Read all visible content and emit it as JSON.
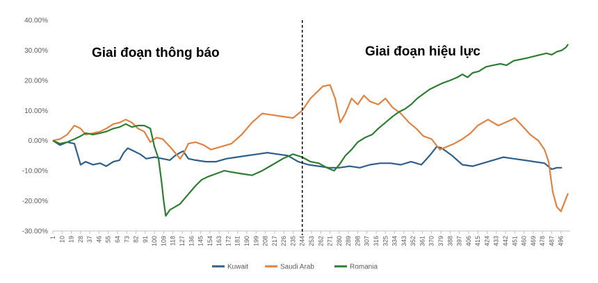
{
  "chart_data": {
    "type": "line",
    "title": "",
    "xlabel": "",
    "ylabel": "",
    "ylim": [
      -30,
      40
    ],
    "y_ticks": [
      "40.00%",
      "30.00%",
      "20.00%",
      "10.00%",
      "0.00%",
      "-10.00%",
      "-20.00%",
      "-30.00%"
    ],
    "y_tick_values": [
      40,
      30,
      20,
      10,
      0,
      -10,
      -20,
      -30
    ],
    "xlim": [
      1,
      505
    ],
    "x_tick_labels": [
      "1",
      "10",
      "19",
      "28",
      "37",
      "46",
      "55",
      "64",
      "73",
      "82",
      "91",
      "100",
      "109",
      "118",
      "127",
      "136",
      "145",
      "154",
      "163",
      "172",
      "181",
      "190",
      "199",
      "208",
      "217",
      "226",
      "235",
      "244",
      "253",
      "262",
      "271",
      "280",
      "289",
      "298",
      "307",
      "316",
      "325",
      "334",
      "343",
      "352",
      "361",
      "370",
      "379",
      "388",
      "397",
      "406",
      "415",
      "424",
      "433",
      "442",
      "451",
      "460",
      "469",
      "478",
      "487",
      "496"
    ],
    "divider_x": 244,
    "divider_style": "dashed",
    "annotations": [
      {
        "text": "Giai đoạn thông báo",
        "x": 120,
        "y": 29
      },
      {
        "text": "Giai đoạn hiệu lực",
        "x": 360,
        "y": 29
      }
    ],
    "grid": false,
    "legend_position": "bottom",
    "series": [
      {
        "name": "Kuwait",
        "color": "#2E5F8A",
        "points": [
          [
            1,
            0
          ],
          [
            8,
            -1.5
          ],
          [
            15,
            -0.5
          ],
          [
            22,
            -1
          ],
          [
            28,
            -8
          ],
          [
            33,
            -7
          ],
          [
            40,
            -8
          ],
          [
            47,
            -7.5
          ],
          [
            53,
            -8.5
          ],
          [
            60,
            -7
          ],
          [
            66,
            -6.5
          ],
          [
            70,
            -4
          ],
          [
            74,
            -2.5
          ],
          [
            80,
            -3.5
          ],
          [
            86,
            -4.5
          ],
          [
            92,
            -6
          ],
          [
            100,
            -5.5
          ],
          [
            108,
            -6
          ],
          [
            115,
            -6.5
          ],
          [
            120,
            -5
          ],
          [
            125,
            -4
          ],
          [
            128,
            -3.5
          ],
          [
            133,
            -6
          ],
          [
            140,
            -6.5
          ],
          [
            150,
            -7
          ],
          [
            160,
            -7
          ],
          [
            170,
            -6
          ],
          [
            180,
            -5.5
          ],
          [
            190,
            -5
          ],
          [
            200,
            -4.5
          ],
          [
            210,
            -4
          ],
          [
            220,
            -4.5
          ],
          [
            230,
            -5
          ],
          [
            240,
            -7
          ],
          [
            250,
            -8
          ],
          [
            260,
            -8.5
          ],
          [
            270,
            -9
          ],
          [
            280,
            -9
          ],
          [
            290,
            -8.5
          ],
          [
            300,
            -9
          ],
          [
            310,
            -8
          ],
          [
            320,
            -7.5
          ],
          [
            330,
            -7.5
          ],
          [
            340,
            -8
          ],
          [
            350,
            -7
          ],
          [
            360,
            -8
          ],
          [
            368,
            -5
          ],
          [
            375,
            -2
          ],
          [
            380,
            -2.5
          ],
          [
            390,
            -5
          ],
          [
            400,
            -8
          ],
          [
            410,
            -8.5
          ],
          [
            420,
            -7.5
          ],
          [
            430,
            -6.5
          ],
          [
            440,
            -5.5
          ],
          [
            450,
            -6
          ],
          [
            460,
            -6.5
          ],
          [
            470,
            -7
          ],
          [
            480,
            -7.5
          ],
          [
            487,
            -9.5
          ],
          [
            492,
            -9
          ],
          [
            497,
            -9
          ]
        ]
      },
      {
        "name": "Saudi Arab",
        "color": "#E2823F",
        "points": [
          [
            1,
            0
          ],
          [
            8,
            0.5
          ],
          [
            15,
            2
          ],
          [
            22,
            5
          ],
          [
            28,
            4
          ],
          [
            33,
            2
          ],
          [
            40,
            2.5
          ],
          [
            47,
            3
          ],
          [
            53,
            4
          ],
          [
            60,
            5.5
          ],
          [
            66,
            6
          ],
          [
            72,
            7
          ],
          [
            78,
            6
          ],
          [
            84,
            4
          ],
          [
            90,
            3
          ],
          [
            96,
            -0.5
          ],
          [
            102,
            1
          ],
          [
            108,
            0.5
          ],
          [
            115,
            -2
          ],
          [
            120,
            -4
          ],
          [
            125,
            -6
          ],
          [
            128,
            -4.5
          ],
          [
            133,
            -1
          ],
          [
            140,
            -0.5
          ],
          [
            148,
            -1.5
          ],
          [
            155,
            -3
          ],
          [
            165,
            -2
          ],
          [
            175,
            -1
          ],
          [
            185,
            2
          ],
          [
            195,
            6
          ],
          [
            205,
            9
          ],
          [
            215,
            8.5
          ],
          [
            225,
            8
          ],
          [
            235,
            7.5
          ],
          [
            244,
            10
          ],
          [
            252,
            14
          ],
          [
            258,
            16
          ],
          [
            264,
            18
          ],
          [
            271,
            18.5
          ],
          [
            276,
            14
          ],
          [
            281,
            6
          ],
          [
            286,
            9
          ],
          [
            292,
            14
          ],
          [
            298,
            12
          ],
          [
            304,
            15
          ],
          [
            310,
            13
          ],
          [
            318,
            12
          ],
          [
            325,
            14
          ],
          [
            332,
            11
          ],
          [
            340,
            9
          ],
          [
            348,
            6
          ],
          [
            355,
            4
          ],
          [
            362,
            1.5
          ],
          [
            370,
            0.5
          ],
          [
            378,
            -3
          ],
          [
            385,
            -2
          ],
          [
            392,
            -1
          ],
          [
            400,
            0.5
          ],
          [
            408,
            2.5
          ],
          [
            415,
            5
          ],
          [
            425,
            7
          ],
          [
            435,
            5
          ],
          [
            445,
            6.5
          ],
          [
            451,
            7.5
          ],
          [
            458,
            5
          ],
          [
            466,
            2
          ],
          [
            474,
            0
          ],
          [
            480,
            -3
          ],
          [
            484,
            -7
          ],
          [
            488,
            -17
          ],
          [
            492,
            -22
          ],
          [
            496,
            -23.5
          ],
          [
            500,
            -20
          ],
          [
            503,
            -17.5
          ]
        ]
      },
      {
        "name": "Romania",
        "color": "#2E7D32",
        "points": [
          [
            1,
            0
          ],
          [
            8,
            -1
          ],
          [
            15,
            -0.5
          ],
          [
            22,
            0.5
          ],
          [
            28,
            1.5
          ],
          [
            33,
            2.5
          ],
          [
            40,
            2
          ],
          [
            47,
            2.5
          ],
          [
            53,
            3
          ],
          [
            60,
            4
          ],
          [
            66,
            4.5
          ],
          [
            72,
            5.5
          ],
          [
            78,
            4.5
          ],
          [
            84,
            5
          ],
          [
            90,
            5
          ],
          [
            96,
            4
          ],
          [
            100,
            -2
          ],
          [
            104,
            -6
          ],
          [
            107,
            -14
          ],
          [
            109,
            -20
          ],
          [
            111,
            -25
          ],
          [
            115,
            -23
          ],
          [
            120,
            -22
          ],
          [
            125,
            -21
          ],
          [
            130,
            -19
          ],
          [
            135,
            -17
          ],
          [
            140,
            -15
          ],
          [
            146,
            -13
          ],
          [
            152,
            -12
          ],
          [
            160,
            -11
          ],
          [
            168,
            -10
          ],
          [
            176,
            -10.5
          ],
          [
            185,
            -11
          ],
          [
            195,
            -11.5
          ],
          [
            205,
            -10
          ],
          [
            215,
            -8
          ],
          [
            225,
            -6
          ],
          [
            235,
            -4.5
          ],
          [
            244,
            -5.5
          ],
          [
            252,
            -7
          ],
          [
            260,
            -7.5
          ],
          [
            268,
            -9
          ],
          [
            275,
            -10
          ],
          [
            280,
            -8
          ],
          [
            286,
            -5
          ],
          [
            292,
            -3
          ],
          [
            298,
            -0.5
          ],
          [
            305,
            1
          ],
          [
            312,
            2
          ],
          [
            318,
            4
          ],
          [
            325,
            6
          ],
          [
            332,
            8
          ],
          [
            338,
            9.5
          ],
          [
            344,
            10.5
          ],
          [
            350,
            12
          ],
          [
            356,
            14
          ],
          [
            362,
            15.5
          ],
          [
            368,
            17
          ],
          [
            374,
            18
          ],
          [
            380,
            19
          ],
          [
            388,
            20
          ],
          [
            395,
            21
          ],
          [
            400,
            22
          ],
          [
            405,
            21
          ],
          [
            410,
            22.5
          ],
          [
            416,
            23
          ],
          [
            423,
            24.5
          ],
          [
            430,
            25
          ],
          [
            437,
            25.5
          ],
          [
            443,
            25
          ],
          [
            450,
            26.5
          ],
          [
            457,
            27
          ],
          [
            464,
            27.5
          ],
          [
            470,
            28
          ],
          [
            476,
            28.5
          ],
          [
            482,
            29
          ],
          [
            487,
            28.5
          ],
          [
            492,
            29.5
          ],
          [
            497,
            30
          ],
          [
            501,
            31
          ],
          [
            503,
            32
          ]
        ]
      }
    ]
  }
}
